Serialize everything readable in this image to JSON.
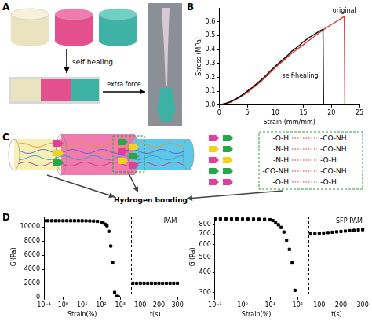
{
  "panel_letters": [
    "A",
    "B",
    "C",
    "D"
  ],
  "panel_A": {
    "steps": [
      "self healing",
      "extra force"
    ]
  },
  "panel_C": {
    "caption": "Hydrogen bonding",
    "bonds": [
      [
        "-O-H",
        "-CO-NH"
      ],
      [
        "-N-H",
        "-CO-NH"
      ],
      [
        "-N-H",
        "-O-H"
      ],
      [
        "-CO-NH",
        "-CO-NH"
      ],
      [
        "-O-H",
        "-O-H"
      ]
    ]
  },
  "chart_data": [
    {
      "type": "line",
      "x_label": "Strain (mm/mm)",
      "y_label": "Stress (MPa)",
      "xlim": [
        0,
        25
      ],
      "xticks": [
        0,
        5,
        10,
        15,
        20,
        25
      ],
      "ylim": [
        0,
        0.7
      ],
      "yticks": [
        {
          "value": 0,
          "label": "0.0"
        },
        0.1,
        0.2,
        0.3,
        0.4,
        0.5,
        0.6
      ],
      "grid": false,
      "series": [
        {
          "name": "self-healing",
          "color": "#000000",
          "x": [
            0,
            1,
            2,
            3,
            4,
            5,
            6,
            7,
            8,
            9,
            10,
            11,
            12,
            13,
            14,
            15,
            16,
            17,
            18,
            18.5,
            18.6
          ],
          "values": [
            0,
            0.01,
            0.025,
            0.045,
            0.07,
            0.1,
            0.13,
            0.165,
            0.2,
            0.24,
            0.28,
            0.315,
            0.35,
            0.39,
            0.42,
            0.455,
            0.485,
            0.51,
            0.535,
            0.545,
            0
          ]
        },
        {
          "name": "original",
          "color": "#e8352b",
          "x": [
            0,
            1,
            2,
            3,
            4,
            5,
            6,
            7,
            8,
            9,
            10,
            11,
            12,
            13,
            14,
            15,
            16,
            17,
            18,
            19,
            20,
            21,
            22,
            22.3,
            22.4
          ],
          "values": [
            0,
            0.01,
            0.02,
            0.04,
            0.065,
            0.09,
            0.12,
            0.155,
            0.19,
            0.23,
            0.27,
            0.305,
            0.34,
            0.375,
            0.405,
            0.435,
            0.465,
            0.495,
            0.525,
            0.555,
            0.58,
            0.605,
            0.63,
            0.64,
            0
          ]
        }
      ]
    },
    {
      "type": "scatter",
      "x_label": "Strain(%)",
      "y_label": "G'(Pa)",
      "log": "x",
      "marker": "square",
      "grid": false,
      "xlim": [
        0.1,
        1000
      ],
      "xticks": [
        {
          "value": 0.1,
          "label": "10⁻¹"
        },
        {
          "value": 1,
          "label": "10⁰"
        },
        {
          "value": 10,
          "label": "10¹"
        },
        {
          "value": 100,
          "label": "10²"
        },
        {
          "value": 1000,
          "label": "10³"
        }
      ],
      "ylim": [
        0,
        11500
      ],
      "yticks": [
        0,
        2000,
        4000,
        6000,
        8000,
        10000
      ],
      "x": [
        0.1,
        0.158,
        0.251,
        0.398,
        0.631,
        1,
        1.585,
        2.512,
        3.981,
        6.31,
        10,
        15.85,
        25.12,
        39.81,
        63.1,
        100,
        125.9,
        158.5,
        199.5,
        251.2,
        316.2,
        398.1,
        501.2,
        631,
        794.3
      ],
      "series": [
        {
          "color": "#000000",
          "values": [
            10900,
            10900,
            10900,
            10900,
            10900,
            10900,
            10900,
            10900,
            10900,
            10900,
            10900,
            10890,
            10880,
            10860,
            10820,
            10700,
            10600,
            10400,
            10200,
            9400,
            7300,
            4900,
            700,
            150,
            60
          ]
        }
      ]
    },
    {
      "type": "scatter",
      "title": "PAM",
      "x_label": "t(s)",
      "marker": "square",
      "grid": false,
      "tick_labels": "x",
      "xlim": [
        50,
        310
      ],
      "xticks": [
        100,
        200,
        300
      ],
      "ylim": [
        0,
        11500
      ],
      "x": [
        60,
        80,
        100,
        120,
        140,
        160,
        180,
        200,
        220,
        240,
        260,
        280,
        300
      ],
      "series": [
        {
          "color": "#000000",
          "values": [
            2000,
            1990,
            2010,
            2000,
            1995,
            2005,
            2000,
            2000,
            1990,
            2000,
            2005,
            2000,
            2000
          ]
        }
      ]
    },
    {
      "type": "scatter",
      "x_label": "Strain(%)",
      "y_label": "G'(Pa)",
      "log": true,
      "marker": "square",
      "grid": false,
      "xlim": [
        0.1,
        100
      ],
      "xticks": [
        {
          "value": 0.1,
          "label": "10⁻¹"
        },
        {
          "value": 1,
          "label": "10⁰"
        },
        {
          "value": 10,
          "label": "10¹"
        },
        {
          "value": 100,
          "label": "10²"
        }
      ],
      "ylim": [
        280,
        900
      ],
      "yticks": [
        300,
        400,
        500,
        600,
        700,
        800
      ],
      "x": [
        0.1,
        0.158,
        0.251,
        0.398,
        0.631,
        1,
        1.585,
        2.512,
        3.981,
        6.31,
        10,
        12.59,
        15.85,
        19.95,
        25.12,
        31.62,
        39.81,
        50.12,
        63.1,
        79.43
      ],
      "series": [
        {
          "color": "#000000",
          "values": [
            870,
            870,
            870,
            869,
            869,
            868,
            868,
            867,
            866,
            865,
            860,
            850,
            830,
            800,
            770,
            720,
            640,
            560,
            460,
            310
          ]
        }
      ]
    },
    {
      "type": "scatter",
      "title": "SFP-PAM",
      "x_label": "t(s)",
      "log": "y",
      "marker": "square",
      "grid": false,
      "tick_labels": "x",
      "xlim": [
        50,
        310
      ],
      "xticks": [
        100,
        200,
        300
      ],
      "ylim": [
        280,
        900
      ],
      "x": [
        60,
        80,
        100,
        120,
        140,
        160,
        180,
        200,
        220,
        240,
        260,
        280,
        300
      ],
      "series": [
        {
          "color": "#000000",
          "values": [
            700,
            702,
            706,
            710,
            714,
            718,
            722,
            726,
            730,
            734,
            738,
            742,
            745
          ]
        }
      ]
    }
  ]
}
